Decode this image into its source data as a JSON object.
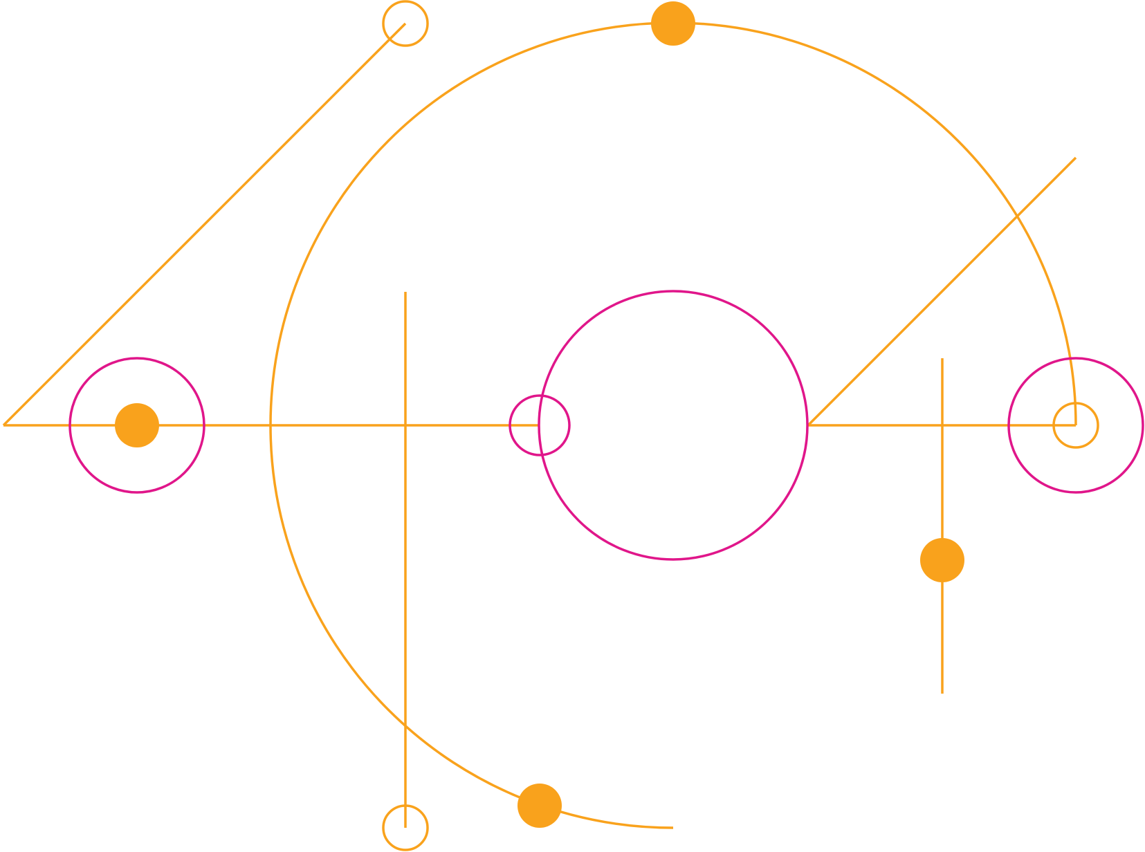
{
  "diagram": {
    "kind": "geometric line art",
    "colors": {
      "background": "#ffffff",
      "orange": "#f9a21c",
      "magenta": "#e0168a"
    },
    "elements": [
      "horizontal-baseline",
      "diagonal-line-left",
      "diagonal-line-right",
      "large-arc",
      "vertical-line-left",
      "vertical-line-right",
      "central-circle",
      "ring-left",
      "ring-right",
      "small-ring-center",
      "node-top-left",
      "node-bottom-left",
      "node-right",
      "dot-arc-top",
      "dot-arc-bottom",
      "dot-left",
      "dot-right-line"
    ]
  }
}
